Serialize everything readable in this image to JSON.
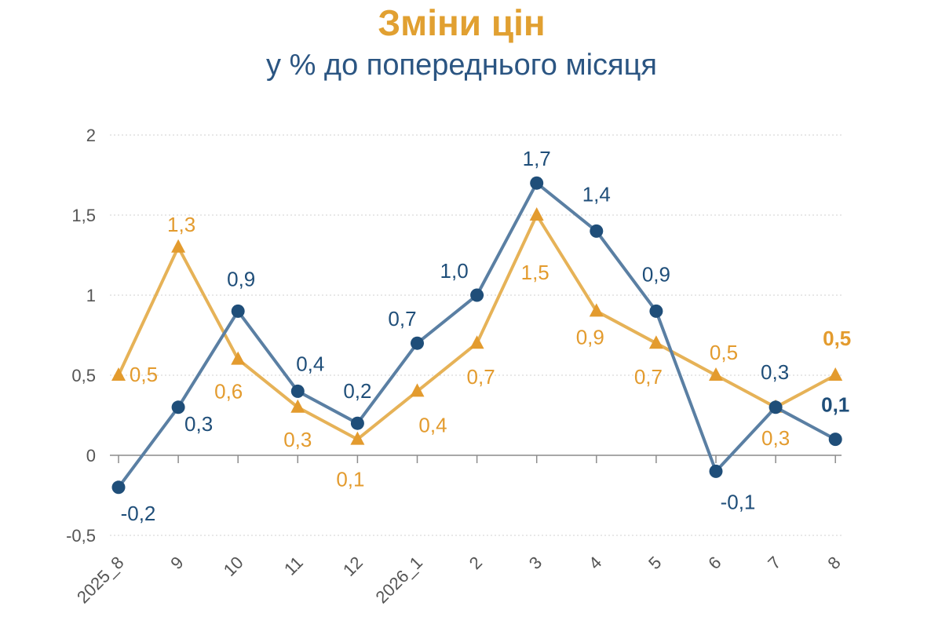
{
  "chart_data": {
    "type": "line",
    "title": "Зміни цін",
    "subtitle": "у % до попереднього місяця",
    "categories": [
      "2025_8",
      "9",
      "10",
      "11",
      "12",
      "2026_1",
      "2",
      "3",
      "4",
      "5",
      "6",
      "7",
      "8"
    ],
    "ylim": [
      -0.5,
      2
    ],
    "yticks": [
      "-0,5",
      "0",
      "0,5",
      "1",
      "1,5",
      "2"
    ],
    "ytick_values": [
      -0.5,
      0,
      0.5,
      1,
      1.5,
      2
    ],
    "grid": true,
    "series": [
      {
        "marker": "circle",
        "color": "#1f4e79",
        "line_color": "#5a7fa3",
        "values": [
          -0.2,
          0.3,
          0.9,
          0.4,
          0.2,
          0.7,
          1.0,
          1.7,
          1.4,
          0.9,
          -0.1,
          0.3,
          0.1
        ],
        "labels": [
          "-0,2",
          "0,3",
          "0,9",
          "0,4",
          "0,2",
          "0,7",
          "1,0",
          "1,7",
          "1,4",
          "0,9",
          "-0,1",
          "0,3",
          "0,1"
        ]
      },
      {
        "marker": "triangle",
        "color": "#e39b2e",
        "line_color": "#e6b257",
        "values": [
          0.5,
          1.3,
          0.6,
          0.3,
          0.1,
          0.4,
          0.7,
          1.5,
          0.9,
          0.7,
          0.5,
          0.3,
          0.5
        ],
        "labels": [
          "0,5",
          "1,3",
          "0,6",
          "0,3",
          "0,1",
          "0,4",
          "0,7",
          "1,5",
          "0,9",
          "0,7",
          "0,5",
          "0,3",
          "0,5"
        ]
      }
    ]
  }
}
